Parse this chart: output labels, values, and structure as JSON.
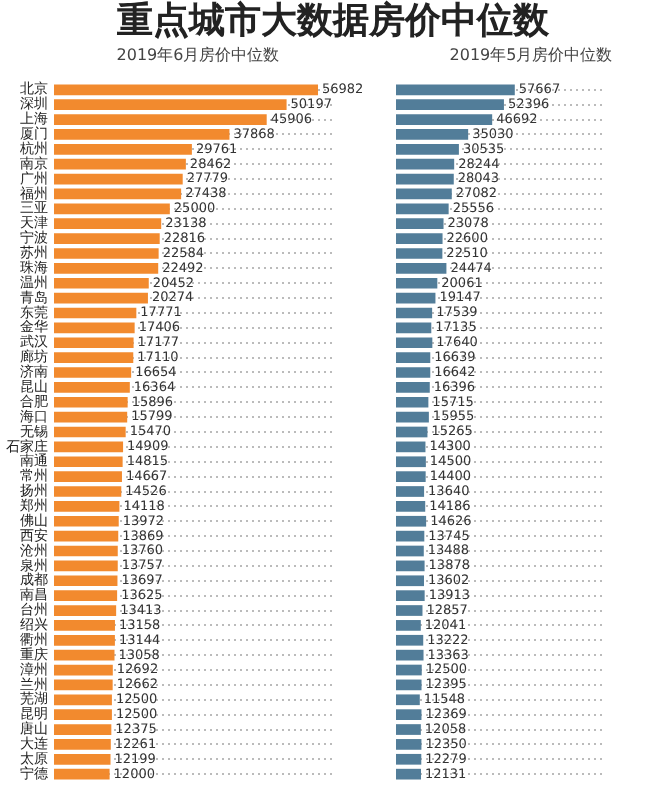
{
  "chart_data": [
    {
      "type": "bar",
      "orientation": "horizontal",
      "title": "重点城市大数据房价中位数",
      "subtitle": "2019年6月房价中位数",
      "categories": [
        "北京",
        "深圳",
        "上海",
        "厦门",
        "杭州",
        "南京",
        "广州",
        "福州",
        "三亚",
        "天津",
        "宁波",
        "苏州",
        "珠海",
        "温州",
        "青岛",
        "东莞",
        "金华",
        "武汉",
        "廊坊",
        "济南",
        "昆山",
        "合肥",
        "海口",
        "无锡",
        "石家庄",
        "南通",
        "常州",
        "扬州",
        "郑州",
        "佛山",
        "西安",
        "沧州",
        "泉州",
        "成都",
        "南昌",
        "台州",
        "绍兴",
        "衢州",
        "重庆",
        "漳州",
        "兰州",
        "芜湖",
        "昆明",
        "唐山",
        "大连",
        "太原",
        "宁德"
      ],
      "values": [
        56982,
        50197,
        45906,
        37868,
        29761,
        28462,
        27779,
        27438,
        25000,
        23138,
        22816,
        22584,
        22492,
        20452,
        20274,
        17771,
        17406,
        17177,
        17110,
        16654,
        16364,
        15896,
        15799,
        15470,
        14909,
        14815,
        14667,
        14526,
        14118,
        13972,
        13869,
        13760,
        13757,
        13697,
        13625,
        13413,
        13158,
        13144,
        13058,
        12692,
        12662,
        12500,
        12500,
        12375,
        12261,
        12199,
        12000
      ],
      "color": "#f28a2e",
      "data_labels": true,
      "grid": "y",
      "tick_labels": "y"
    },
    {
      "type": "bar",
      "orientation": "horizontal",
      "subtitle": "2019年5月房价中位数",
      "categories": [
        null,
        null,
        null,
        null,
        null,
        null,
        null,
        null,
        null,
        null,
        null,
        null,
        null,
        null,
        null,
        null,
        null,
        null,
        null,
        null,
        null,
        null,
        null,
        null,
        null,
        null,
        null,
        null,
        null,
        null,
        null,
        null,
        null,
        null,
        null,
        null,
        null,
        null,
        null,
        null,
        null,
        null,
        null,
        null,
        null,
        null,
        null
      ],
      "values": [
        57667,
        52396,
        46692,
        35030,
        30535,
        28244,
        28043,
        27082,
        25556,
        23078,
        22600,
        22510,
        24474,
        20061,
        19147,
        17539,
        17135,
        17640,
        16639,
        16642,
        16396,
        15715,
        15955,
        15265,
        14300,
        14500,
        14400,
        13640,
        14186,
        14626,
        13745,
        13488,
        13878,
        13602,
        13913,
        12857,
        12041,
        13222,
        13363,
        12500,
        12395,
        11548,
        12369,
        12058,
        12350,
        12279,
        12131
      ],
      "color": "#527d99",
      "data_labels": true,
      "grid": "y",
      "tick_labels": false
    }
  ]
}
